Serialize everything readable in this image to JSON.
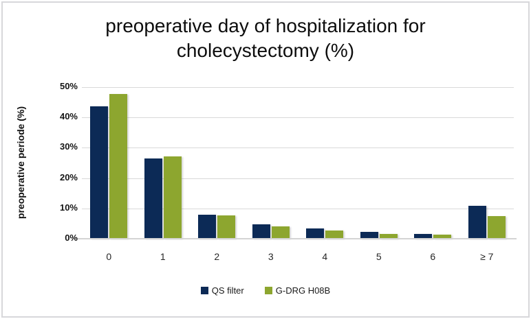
{
  "title": {
    "line1": "preoperative day of hospitalization for",
    "line2": "cholecystectomy (%)"
  },
  "chart_data": {
    "type": "bar",
    "title": "preoperative day of hospitalization for cholecystectomy (%)",
    "categories": [
      "0",
      "1",
      "2",
      "3",
      "4",
      "5",
      "6",
      "≥ 7"
    ],
    "series": [
      {
        "name": "QS filter",
        "color": "#0c2a56",
        "values": [
          43.7,
          26.4,
          7.9,
          4.8,
          3.4,
          2.3,
          1.7,
          10.8
        ]
      },
      {
        "name": "G-DRG H08B",
        "color": "#8da62f",
        "values": [
          47.8,
          27.2,
          7.7,
          4.1,
          2.8,
          1.7,
          1.4,
          7.5
        ]
      }
    ],
    "xlabel": "",
    "ylabel": "preoperative periode (%)",
    "ylim": [
      0,
      50
    ],
    "ytick_step": 10,
    "ytick_labels": [
      "0%",
      "10%",
      "20%",
      "30%",
      "40%",
      "50%"
    ],
    "grid": true,
    "gridline_color": "#d9d9d9",
    "axis_line_color": "#d4d4d4",
    "legend_position": "bottom"
  },
  "colors": {
    "frame_border": "#d7d7da",
    "background": "#ffffff",
    "title_text": "#0d0d0d"
  }
}
